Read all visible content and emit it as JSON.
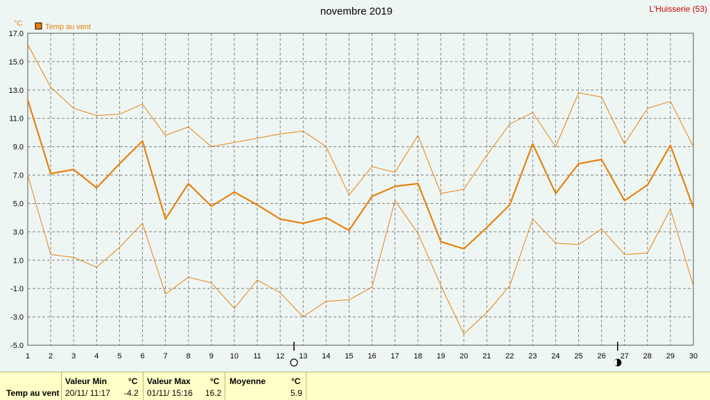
{
  "header": {
    "title": "novembre 2019",
    "location": "L'Huisserie (53)"
  },
  "colors": {
    "series": "#e8800c",
    "grid": "#808080",
    "location": "#cc0000",
    "plot_bg": "#eef6f4",
    "stats_bg": "#ffffc8"
  },
  "chart_data": {
    "type": "line",
    "ylabel": "°C",
    "ylim": [
      -5,
      17
    ],
    "yticks": [
      "17.0",
      "15.0",
      "13.0",
      "11.0",
      "9.0",
      "7.0",
      "5.0",
      "3.0",
      "1.0",
      "-1.0",
      "-3.0",
      "-5.0"
    ],
    "xlim": [
      1,
      30
    ],
    "x": [
      1,
      2,
      3,
      4,
      5,
      6,
      7,
      8,
      9,
      10,
      11,
      12,
      13,
      14,
      15,
      16,
      17,
      18,
      19,
      20,
      21,
      22,
      23,
      24,
      25,
      26,
      27,
      28,
      29,
      30
    ],
    "legend": "Temp au vent",
    "grid": true,
    "series": [
      {
        "name": "Temp au vent",
        "role": "mean",
        "values": [
          12.3,
          7.1,
          7.4,
          6.1,
          7.8,
          9.4,
          3.9,
          6.4,
          4.8,
          5.8,
          4.9,
          3.9,
          3.6,
          4.0,
          3.1,
          5.5,
          6.2,
          6.4,
          2.3,
          1.8,
          3.3,
          4.9,
          9.2,
          5.7,
          7.8,
          8.1,
          5.2,
          6.3,
          9.1,
          4.7
        ]
      },
      {
        "role": "max",
        "values": [
          16.2,
          13.2,
          11.7,
          11.2,
          11.3,
          12.0,
          9.8,
          10.4,
          9.0,
          9.3,
          9.6,
          9.9,
          10.1,
          9.0,
          5.6,
          7.6,
          7.2,
          9.8,
          5.7,
          6.0,
          8.4,
          10.6,
          11.4,
          9.0,
          12.8,
          12.5,
          9.2,
          11.7,
          12.2,
          9.0
        ]
      },
      {
        "role": "min",
        "values": [
          7.0,
          1.4,
          1.2,
          0.5,
          1.9,
          3.6,
          -1.4,
          -0.2,
          -0.6,
          -2.4,
          -0.4,
          -1.3,
          -3.0,
          -1.9,
          -1.8,
          -0.9,
          5.2,
          2.9,
          -0.8,
          -4.2,
          -2.7,
          -0.8,
          3.9,
          2.2,
          2.1,
          3.2,
          1.4,
          1.5,
          4.6,
          -0.8
        ]
      }
    ],
    "moon_phases": [
      {
        "day": 12.6,
        "phase": "full-moon"
      },
      {
        "day": 26.7,
        "phase": "new-moon"
      }
    ]
  },
  "stats": {
    "row_label": "Temp au vent",
    "min_header": "Valeur Min",
    "min_unit": "°C",
    "min_date": "20/11/  11:17",
    "min_value": "-4.2",
    "max_header": "Valeur Max",
    "max_unit": "°C",
    "max_date": "01/11/  15:16",
    "max_value": "16.2",
    "avg_header": "Moyenne",
    "avg_unit": "°C",
    "avg_value": "5.9"
  }
}
